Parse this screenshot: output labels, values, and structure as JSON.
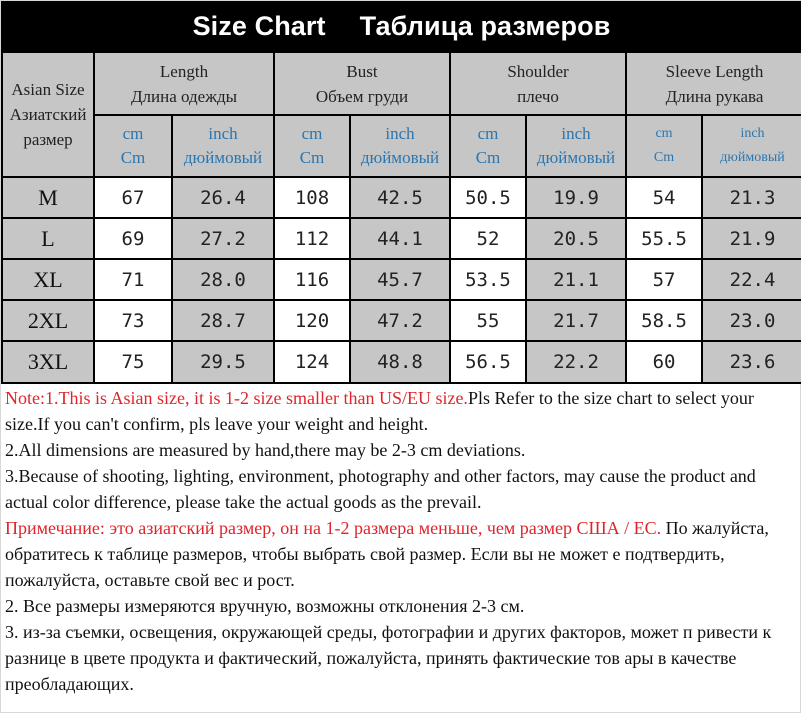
{
  "title": {
    "en": "Size Chart",
    "ru": "Таблица размеров"
  },
  "header": {
    "size_col": [
      "Asian Size",
      "Азиатский",
      "размер"
    ],
    "groups": [
      {
        "en": "Length",
        "ru": "Длина одежды"
      },
      {
        "en": "Bust",
        "ru": "Объем груди"
      },
      {
        "en": "Shoulder",
        "ru": "плечо"
      },
      {
        "en": "Sleeve Length",
        "ru": "Длина рукава"
      }
    ],
    "units": {
      "cm_line1": "cm",
      "cm_line2": "Cm",
      "inch_line1": "inch",
      "inch_line2": "дюймовый"
    }
  },
  "rows": [
    {
      "size": "M",
      "values": [
        "67",
        "26.4",
        "108",
        "42.5",
        "50.5",
        "19.9",
        "54",
        "21.3"
      ]
    },
    {
      "size": "L",
      "values": [
        "69",
        "27.2",
        "112",
        "44.1",
        "52",
        "20.5",
        "55.5",
        "21.9"
      ]
    },
    {
      "size": "XL",
      "values": [
        "71",
        "28.0",
        "116",
        "45.7",
        "53.5",
        "21.1",
        "57",
        "22.4"
      ]
    },
    {
      "size": "2XL",
      "values": [
        "73",
        "28.7",
        "120",
        "47.2",
        "55",
        "21.7",
        "58.5",
        "23.0"
      ]
    },
    {
      "size": "3XL",
      "values": [
        "75",
        "29.5",
        "124",
        "48.8",
        "56.5",
        "22.2",
        "60",
        "23.6"
      ]
    }
  ],
  "notes": {
    "en1_red": "Note:1.This is Asian size, it is 1-2 size smaller than US/EU size.",
    "en1_rest": "Pls Refer to the size chart to select your size.If you can't confirm, pls leave your weight and height.",
    "en2": "2.All dimensions are measured by hand,there may be 2-3 cm deviations.",
    "en3": "3.Because of shooting, lighting, environment, photography and other factors, may cause the product and actual color difference, please take the actual goods as the prevail.",
    "ru1_red": "Примечание: это азиатский размер, он на 1-2 размера меньше, чем размер США / ЕС.",
    "ru1_rest": " По жалуйста, обратитесь к таблице размеров, чтобы выбрать свой размер. Если вы не может е подтвердить, пожалуйста, оставьте свой вес и рост.",
    "ru2": "2. Все размеры измеряются вручную, возможны отклонения 2-3 см.",
    "ru3": "3. из-за съемки, освещения, окружающей среды, фотографии и других факторов, может п ривести к разнице в цвете продукта и фактический, пожалуйста, принять фактические тов ары в качестве преобладающих."
  }
}
